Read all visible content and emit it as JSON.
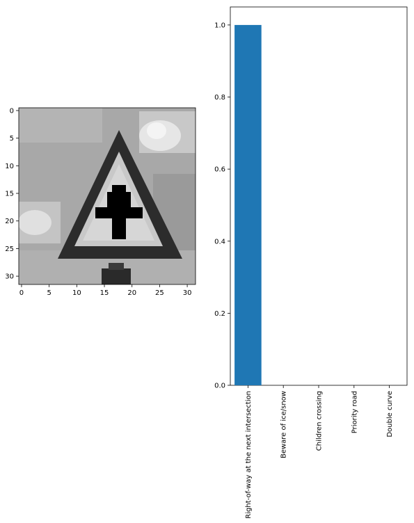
{
  "chart_data": [
    {
      "type": "heatmap",
      "description_kind": "grayscale image",
      "colormap": "gray",
      "xlim": [
        -0.5,
        31.5
      ],
      "ylim": [
        31.5,
        -0.5
      ],
      "x_ticks": [
        0,
        5,
        10,
        15,
        20,
        25,
        30
      ],
      "y_ticks": [
        0,
        5,
        10,
        15,
        20,
        25,
        30
      ]
    },
    {
      "type": "bar",
      "categories": [
        "Right-of-way at the next intersection",
        "Beware of ice/snow",
        "Children crossing",
        "Priority road",
        "Double curve"
      ],
      "values": [
        1.0,
        0.0,
        0.0,
        0.0,
        0.0
      ],
      "ylim": [
        0,
        1.05
      ],
      "y_ticks": [
        "0.0",
        "0.2",
        "0.4",
        "0.6",
        "0.8",
        "1.0"
      ],
      "bar_color": "#1f77b4",
      "xlabel": "",
      "ylabel": ""
    }
  ]
}
